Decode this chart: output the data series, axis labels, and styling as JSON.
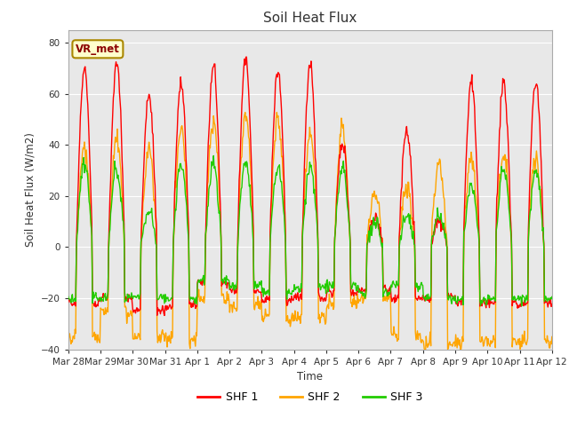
{
  "title": "Soil Heat Flux",
  "ylabel": "Soil Heat Flux (W/m2)",
  "xlabel": "Time",
  "ylim": [
    -40,
    85
  ],
  "yticks": [
    -40,
    -20,
    0,
    20,
    40,
    60,
    80
  ],
  "colors": {
    "SHF 1": "#ff0000",
    "SHF 2": "#ffa500",
    "SHF 3": "#22cc00"
  },
  "annotation_text": "VR_met",
  "annotation_fg_color": "#8B0000",
  "annotation_bg_color": "#ffffcc",
  "annotation_border_color": "#aa8800",
  "background_color": "#ffffff",
  "plot_bg_color": "#e8e8e8",
  "grid_color": "#ffffff",
  "line_width": 1.0,
  "num_days": 15,
  "points_per_day": 48,
  "tick_labels": [
    "Mar 28",
    "Mar 29",
    "Mar 30",
    "Mar 31",
    "Apr 1",
    "Apr 2",
    "Apr 3",
    "Apr 4",
    "Apr 5",
    "Apr 6",
    "Apr 7",
    "Apr 8",
    "Apr 9",
    "Apr 10",
    "Apr 11",
    "Apr 12"
  ],
  "peak_shf1": [
    70,
    72,
    59,
    64,
    71,
    74,
    70,
    71,
    40,
    11,
    45,
    10,
    65,
    65,
    65
  ],
  "peak_shf2": [
    38,
    42,
    38,
    48,
    50,
    52,
    50,
    44,
    47,
    22,
    23,
    32,
    35,
    35,
    35
  ],
  "peak_shf3": [
    33,
    30,
    14,
    32,
    33,
    33,
    31,
    32,
    31,
    10,
    12,
    12,
    25,
    30,
    30
  ],
  "night_shf1": [
    -22,
    -20,
    -25,
    -23,
    -14,
    -17,
    -21,
    -20,
    -18,
    -17,
    -20,
    -20,
    -22,
    -22,
    -22
  ],
  "night_shf2": [
    -35,
    -25,
    -35,
    -36,
    -20,
    -23,
    -28,
    -28,
    -22,
    -20,
    -35,
    -38,
    -37,
    -37,
    -37
  ],
  "night_shf3": [
    -20,
    -20,
    -20,
    -20,
    -13,
    -15,
    -18,
    -16,
    -15,
    -18,
    -15,
    -20,
    -21,
    -20,
    -20
  ],
  "legend_items": [
    "SHF 1",
    "SHF 2",
    "SHF 3"
  ],
  "figsize": [
    6.4,
    4.8
  ],
  "dpi": 100
}
